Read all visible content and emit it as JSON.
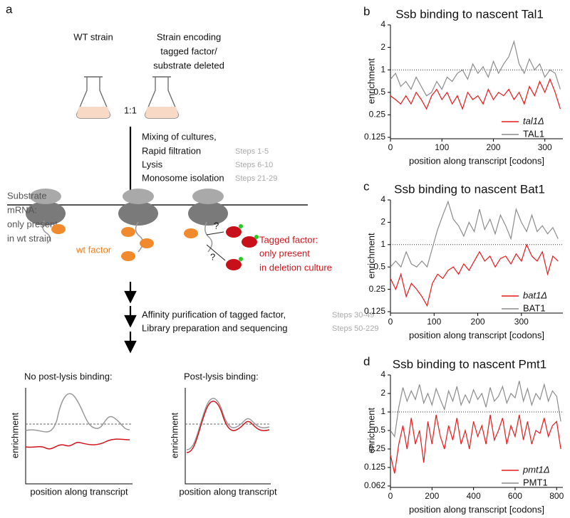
{
  "panel_a": {
    "label": "a",
    "wt_strain": "WT strain",
    "mutant_strain": [
      "Strain encoding",
      "tagged factor/",
      "substrate deleted"
    ],
    "ratio": "1:1",
    "steps_1": [
      {
        "text": "Mixing of cultures,",
        "steps": ""
      },
      {
        "text": "Rapid filtration",
        "steps": "Steps 1-5"
      },
      {
        "text": "Lysis",
        "steps": "Steps 6-10"
      },
      {
        "text": "Monosome isolation",
        "steps": "Steps 21-29"
      }
    ],
    "substrate": [
      "Substrate",
      "mRNA:",
      "only present",
      "in wt strain"
    ],
    "wt_factor": "wt factor",
    "question": "?",
    "tagged_factor": [
      "Tagged factor:",
      "only present",
      "in deletion culture"
    ],
    "steps_2": [
      {
        "text": "Affinity purification of tagged factor,",
        "steps": "Steps 30-49"
      },
      {
        "text": "Library preparation and sequencing",
        "steps": "Steps 50-229"
      }
    ],
    "schematics": [
      {
        "title": "No post-lysis binding:",
        "ylabel": "enrichment",
        "xlabel": "position along transcript"
      },
      {
        "title": "Post-lysis binding:",
        "ylabel": "enrichment",
        "xlabel": "position along transcript"
      }
    ]
  },
  "chart_data": [
    {
      "type": "line",
      "panel": "b",
      "title": "Ssb binding to nascent Tal1",
      "xlabel": "position along transcript [codons]",
      "ylabel": "enrichment",
      "log_y": true,
      "reference_line": 1,
      "xlim": [
        0,
        335
      ],
      "xticks": [
        0,
        100,
        200,
        300
      ],
      "ylim": [
        0.125,
        4
      ],
      "yticks": [
        0.125,
        0.25,
        0.5,
        1,
        2,
        4
      ],
      "x": [
        0,
        10,
        20,
        30,
        40,
        50,
        60,
        70,
        80,
        90,
        100,
        110,
        120,
        130,
        140,
        150,
        160,
        170,
        180,
        190,
        200,
        210,
        220,
        230,
        240,
        250,
        260,
        270,
        280,
        290,
        300,
        310,
        320,
        330
      ],
      "series": [
        {
          "name": "tal1Δ",
          "color": "#e8191c",
          "values": [
            0.45,
            0.4,
            0.35,
            0.45,
            0.35,
            0.5,
            0.4,
            0.3,
            0.45,
            0.55,
            0.4,
            0.5,
            0.35,
            0.45,
            0.3,
            0.5,
            0.4,
            0.45,
            0.35,
            0.55,
            0.4,
            0.5,
            0.45,
            0.55,
            0.4,
            0.5,
            0.35,
            0.6,
            0.45,
            0.7,
            0.5,
            0.75,
            0.5,
            0.3
          ]
        },
        {
          "name": "TAL1",
          "color": "#8c8c8c",
          "values": [
            0.75,
            0.9,
            0.6,
            0.7,
            0.55,
            0.8,
            0.6,
            0.45,
            0.5,
            0.7,
            0.55,
            0.8,
            0.7,
            0.9,
            1.0,
            0.75,
            1.2,
            0.9,
            1.1,
            0.8,
            1.3,
            0.9,
            1.2,
            1.5,
            2.4,
            1.2,
            0.9,
            1.4,
            1.0,
            1.2,
            0.8,
            1.0,
            0.9,
            0.55
          ]
        }
      ]
    },
    {
      "type": "line",
      "panel": "c",
      "title": "Ssb binding to nascent Bat1",
      "xlabel": "position along transcript [codons]",
      "ylabel": "enrichment",
      "log_y": true,
      "reference_line": 1,
      "xlim": [
        0,
        395
      ],
      "xticks": [
        0,
        100,
        200,
        300
      ],
      "ylim": [
        0.125,
        4
      ],
      "yticks": [
        0.125,
        0.25,
        0.5,
        1,
        2,
        4
      ],
      "x": [
        0,
        12,
        24,
        36,
        48,
        60,
        72,
        84,
        96,
        108,
        120,
        132,
        144,
        156,
        168,
        180,
        192,
        204,
        216,
        228,
        240,
        252,
        264,
        276,
        288,
        300,
        312,
        324,
        336,
        348,
        360,
        372,
        384
      ],
      "series": [
        {
          "name": "bat1Δ",
          "color": "#e8191c",
          "values": [
            0.35,
            0.25,
            0.4,
            0.2,
            0.3,
            0.25,
            0.2,
            0.15,
            0.3,
            0.4,
            0.35,
            0.45,
            0.5,
            0.4,
            0.55,
            0.45,
            0.6,
            0.8,
            0.6,
            0.7,
            0.5,
            0.65,
            0.7,
            0.55,
            0.75,
            0.6,
            1.0,
            0.7,
            0.6,
            0.8,
            0.4,
            0.7,
            0.6
          ]
        },
        {
          "name": "BAT1",
          "color": "#8c8c8c",
          "values": [
            0.5,
            0.6,
            0.5,
            0.8,
            0.55,
            0.5,
            0.6,
            0.5,
            0.9,
            1.6,
            2.5,
            3.8,
            2.2,
            1.8,
            1.3,
            2.0,
            1.5,
            3.0,
            1.6,
            2.2,
            1.4,
            2.5,
            1.8,
            1.2,
            3.0,
            2.0,
            1.5,
            2.5,
            1.5,
            1.8,
            1.4,
            1.7,
            1.2
          ]
        }
      ]
    },
    {
      "type": "line",
      "panel": "d",
      "title": "Ssb binding to nascent Pmt1",
      "xlabel": "position along transcript [codons]",
      "ylabel": "enrichment",
      "log_y": true,
      "reference_line": 1,
      "xlim": [
        0,
        830
      ],
      "xticks": [
        0,
        200,
        400,
        600,
        800
      ],
      "ylim": [
        0.0625,
        4
      ],
      "yticks": [
        {
          "value": 0.0625,
          "label": "0.062"
        },
        0.125,
        0.25,
        0.5,
        1,
        2,
        4
      ],
      "x": [
        0,
        20,
        40,
        60,
        80,
        100,
        120,
        140,
        160,
        180,
        200,
        220,
        240,
        260,
        280,
        300,
        320,
        340,
        360,
        380,
        400,
        420,
        440,
        460,
        480,
        500,
        520,
        540,
        560,
        580,
        600,
        620,
        640,
        660,
        680,
        700,
        720,
        740,
        760,
        780,
        800,
        820
      ],
      "series": [
        {
          "name": "pmt1Δ",
          "color": "#e8191c",
          "values": [
            0.2,
            0.1,
            0.3,
            0.6,
            0.25,
            0.8,
            0.3,
            0.5,
            0.15,
            0.7,
            0.3,
            0.9,
            0.4,
            0.25,
            0.6,
            0.35,
            0.8,
            0.3,
            0.5,
            0.25,
            0.7,
            0.4,
            0.6,
            0.3,
            0.9,
            0.35,
            0.5,
            0.8,
            0.3,
            0.6,
            0.4,
            0.9,
            0.35,
            0.7,
            0.3,
            0.5,
            0.45,
            0.8,
            0.4,
            0.6,
            0.7,
            0.25
          ]
        },
        {
          "name": "PMT1",
          "color": "#8c8c8c",
          "values": [
            0.5,
            0.4,
            1.2,
            2.5,
            1.5,
            2.2,
            1.6,
            2.8,
            1.4,
            2.0,
            1.3,
            2.4,
            1.6,
            1.1,
            2.2,
            1.5,
            2.6,
            1.3,
            1.9,
            1.4,
            2.3,
            1.6,
            2.0,
            1.2,
            2.5,
            1.5,
            1.8,
            2.6,
            1.4,
            2.0,
            1.7,
            3.2,
            1.5,
            2.4,
            1.3,
            2.0,
            1.6,
            2.8,
            1.5,
            2.2,
            1.8,
            0.7
          ]
        }
      ]
    }
  ]
}
